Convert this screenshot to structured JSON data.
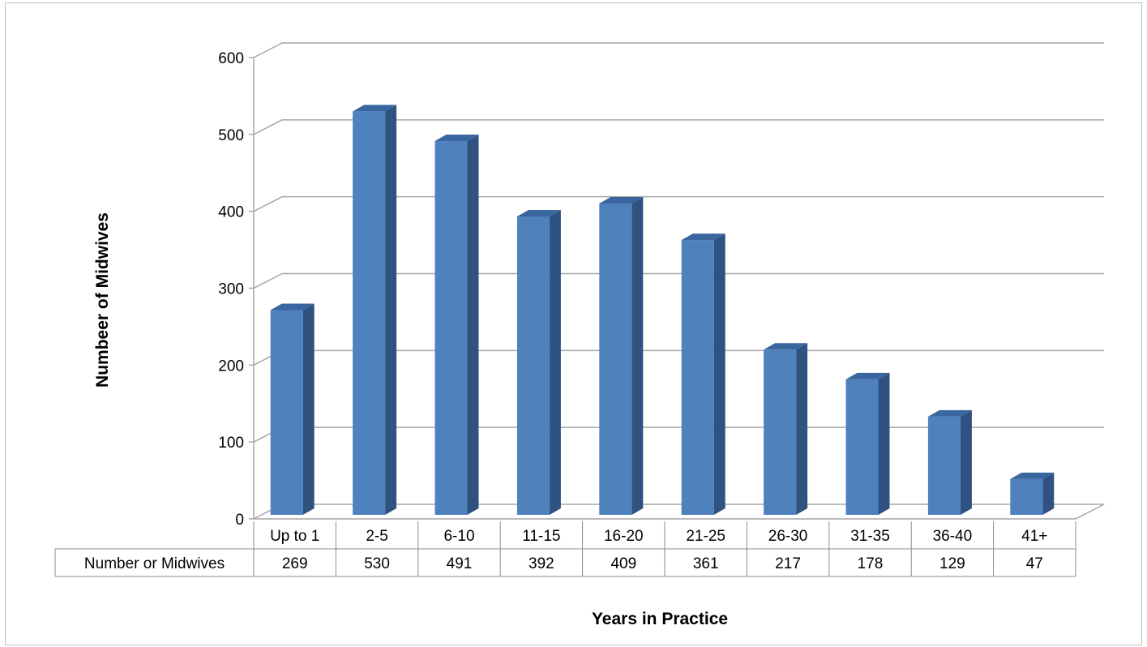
{
  "chart_data": {
    "type": "bar",
    "categories": [
      "Up to 1",
      "2-5",
      "6-10",
      "11-15",
      "16-20",
      "21-25",
      "26-30",
      "31-35",
      "36-40",
      "41+"
    ],
    "series": [
      {
        "name": "Number or Midwives",
        "values": [
          269,
          530,
          491,
          392,
          409,
          361,
          217,
          178,
          129,
          47
        ]
      }
    ],
    "xlabel": "Years in Practice",
    "ylabel": "Numbeer of Midwives",
    "ylim": [
      0,
      600
    ],
    "yticks": [
      0,
      100,
      200,
      300,
      400,
      500,
      600
    ],
    "grid": true,
    "data_table": true,
    "colors": {
      "bar_front": "#4f81bd",
      "bar_side": "#2f5280",
      "bar_top": "#3a66a0",
      "grid": "#a6a6a6"
    }
  }
}
